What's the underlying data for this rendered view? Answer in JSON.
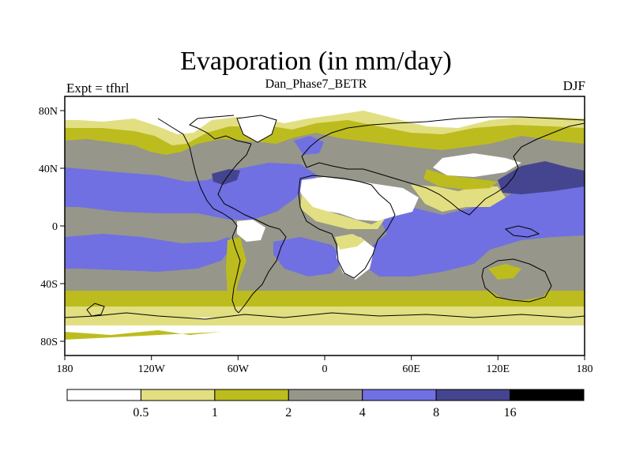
{
  "title": "Evaporation (in mm/day)",
  "subtitle": "Dan_Phase7_BETR",
  "left_label": "Expt = tfhrl",
  "right_label": "DJF",
  "chart_data": {
    "type": "heatmap",
    "projection": "cylindrical equidistant (global)",
    "variable": "Evaporation",
    "units": "mm/day",
    "season": "DJF",
    "x_ticks": [
      "180",
      "120W",
      "60W",
      "0",
      "60E",
      "120E",
      "180"
    ],
    "y_ticks": [
      "80N",
      "40N",
      "0",
      "40S",
      "80S"
    ],
    "xlim": [
      -180,
      180
    ],
    "ylim": [
      -90,
      90
    ],
    "colorbar": {
      "levels": [
        "0.5",
        "1",
        "2",
        "4",
        "8",
        "16"
      ],
      "colors": [
        "#ffffff",
        "#e2df82",
        "#bdbc1e",
        "#96968a",
        "#7070e2",
        "#45458f",
        "#000000"
      ]
    }
  }
}
